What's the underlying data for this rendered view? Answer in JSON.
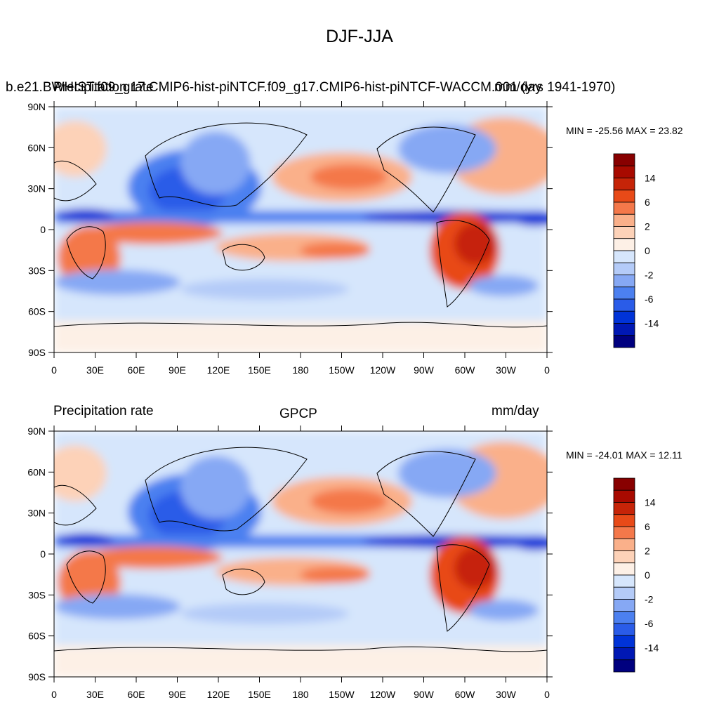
{
  "title": "DJF-JJA",
  "palette": [
    "#00007f",
    "#0018b4",
    "#0033d8",
    "#2a5ce8",
    "#4c80f0",
    "#86a8f4",
    "#b4cbf8",
    "#d6e6fc",
    "#fdf0e6",
    "#fdd2b8",
    "#fab08a",
    "#f4784a",
    "#e84a18",
    "#c62408",
    "#a80a00",
    "#880000"
  ],
  "colorbar": {
    "labels": [
      "14",
      "6",
      "2",
      "0",
      "-2",
      "-6",
      "-14"
    ],
    "top_color": "#880000",
    "bottom_color": "#00007f"
  },
  "lat_labels": [
    "90N",
    "60N",
    "30N",
    "0",
    "30S",
    "60S",
    "90S"
  ],
  "lon_labels": [
    "0",
    "30E",
    "60E",
    "90E",
    "120E",
    "150E",
    "180",
    "150W",
    "120W",
    "90W",
    "60W",
    "30W",
    "0"
  ],
  "panels": [
    {
      "left_title": "b.e21.BWHIST.f09_g17.CMIP6-hist-piNTCF.f09_g17.CMIP6-hist-piNTCF-WACCM.001 (yrs 1941-1970)",
      "left_title_overlay": "Precipitation rate",
      "center_title": "",
      "right_title": "mm/day",
      "min_max": "MIN = -25.56 MAX =  23.82"
    },
    {
      "left_title": "Precipitation rate",
      "center_title": "GPCP",
      "right_title": "mm/day",
      "min_max": "MIN = -24.01 MAX =  12.11"
    }
  ]
}
